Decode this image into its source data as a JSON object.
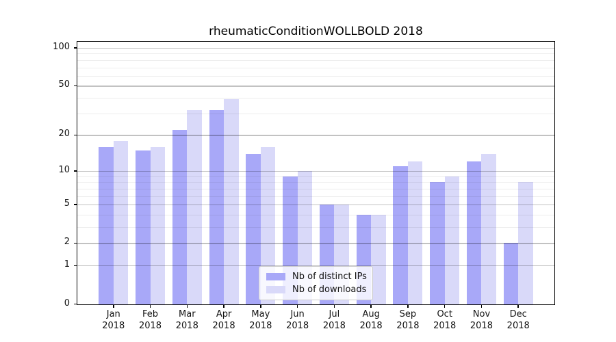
{
  "chart_data": {
    "type": "bar",
    "title": "rheumaticConditionWOLLBOLD 2018",
    "categories": [
      "Jan 2018",
      "Feb 2018",
      "Mar 2018",
      "Apr 2018",
      "May 2018",
      "Jun 2018",
      "Jul 2018",
      "Aug 2018",
      "Sep 2018",
      "Oct 2018",
      "Nov 2018",
      "Dec 2018"
    ],
    "series": [
      {
        "name": "Nb of distinct IPs",
        "color": "#a8a8f8",
        "values": [
          16,
          15,
          22,
          32,
          14,
          9,
          5,
          4,
          11,
          8,
          12,
          2
        ]
      },
      {
        "name": "Nb of downloads",
        "color": "#d9d9f9",
        "values": [
          18,
          16,
          32,
          39,
          16,
          10,
          5,
          4,
          12,
          9,
          14,
          8
        ]
      }
    ],
    "xlabel": "",
    "ylabel": "",
    "yscale": "log1p",
    "ylim": [
      0,
      113
    ],
    "yticks": [
      0,
      1,
      2,
      5,
      10,
      20,
      50,
      100
    ],
    "minor_yticks": [
      3,
      4,
      6,
      7,
      8,
      9,
      30,
      40,
      60,
      70,
      80,
      90
    ],
    "grid": "horizontal major and minor gridlines, drawn above bars",
    "legend_position": "lower center",
    "bar_group": "paired, IPs left / downloads right, no gap within pair"
  }
}
